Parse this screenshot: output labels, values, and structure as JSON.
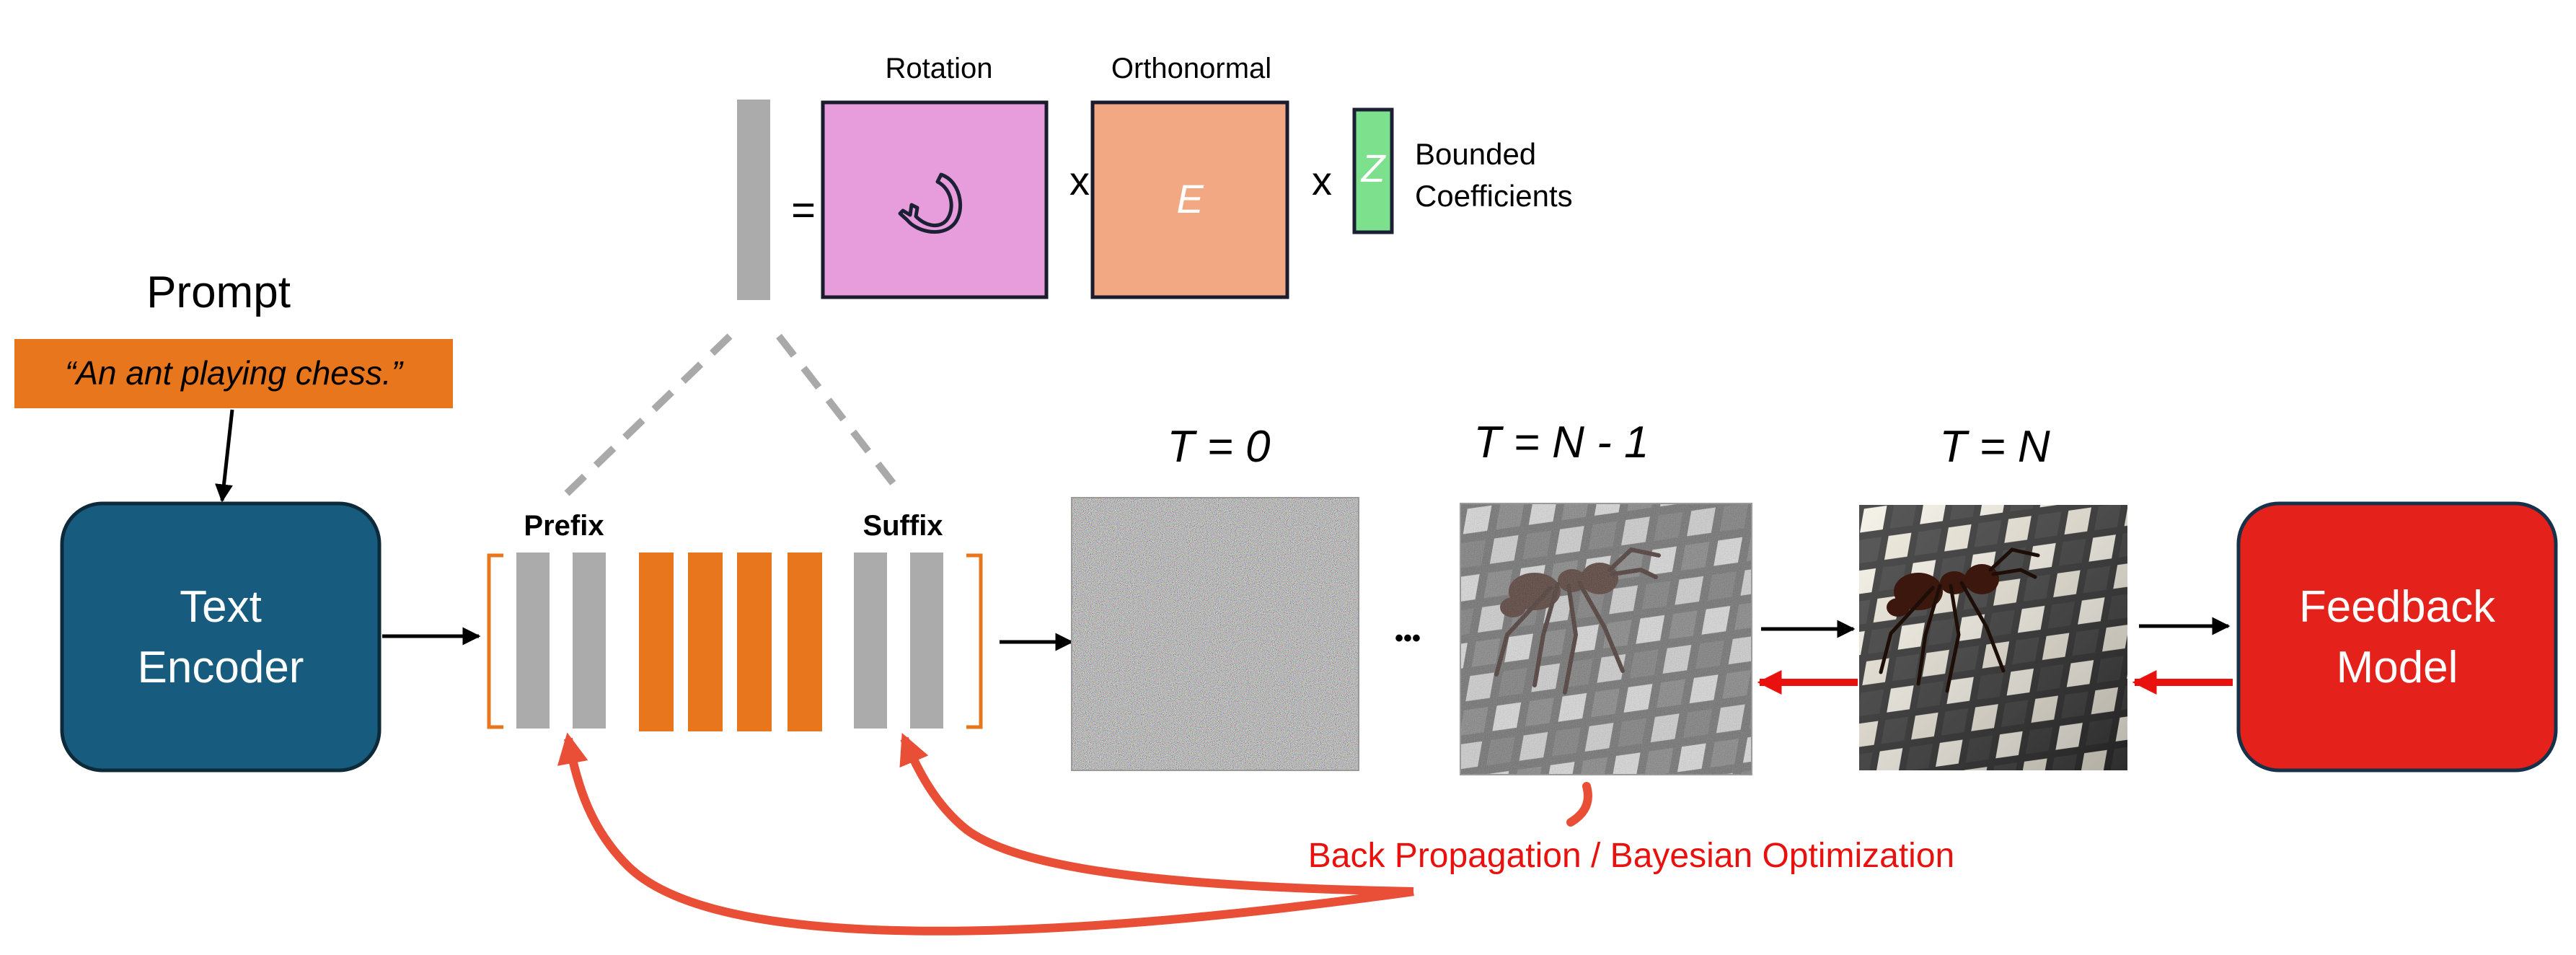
{
  "prompt": {
    "label": "Prompt",
    "text": "“An ant playing chess.”"
  },
  "encoder": {
    "line1": "Text",
    "line2": "Encoder"
  },
  "tokens": {
    "prefix_label": "Prefix",
    "suffix_label": "Suffix"
  },
  "decomposition": {
    "equals": "=",
    "rotation_label": "Rotation",
    "orthonormal_label": "Orthonormal",
    "orthonormal_symbol": "E",
    "times1": "x",
    "times2": "x",
    "coeff_symbol": "Z",
    "coeff_label_line1": "Bounded",
    "coeff_label_line2": "Coefficients"
  },
  "timesteps": {
    "t0": "T = 0",
    "ellipsis": "•••",
    "tn1": "T = N - 1",
    "tn": "T = N"
  },
  "feedback": {
    "line1": "Feedback",
    "line2": "Model"
  },
  "optimization_label": "Back Propagation / Bayesian Optimization",
  "colors": {
    "encoder_fill": "#175c7e",
    "feedback_fill": "#e5211c",
    "prompt_fill": "#e8761c",
    "token_gray": "#ababab",
    "token_orange": "#e8761c",
    "rotation_fill": "#e79cdb",
    "orthonormal_fill": "#f2a983",
    "coeff_fill": "#7de08c",
    "backprop_arrow": "#e94f36",
    "red_arrow": "#e8110e"
  }
}
